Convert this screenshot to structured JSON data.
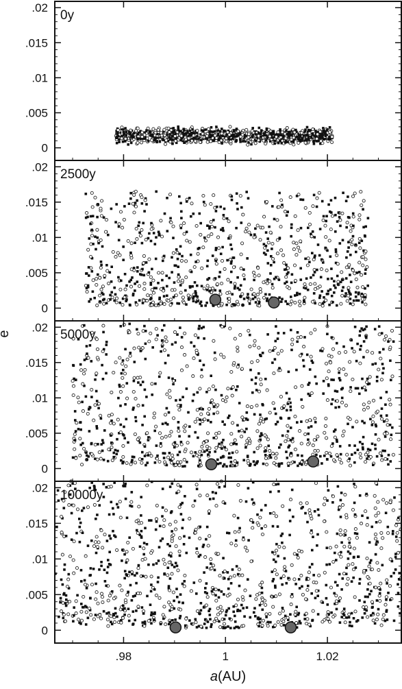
{
  "chart_data": {
    "type": "scatter",
    "x_axis": {
      "label_italic": "a",
      "label_unit": "(AU)",
      "range": [
        0.9665,
        1.0345
      ],
      "ticks": [
        0.98,
        1.0,
        1.02
      ],
      "tick_labels": [
        ".98",
        "1",
        "1.02"
      ]
    },
    "y_axis": {
      "label": "e",
      "range": [
        -0.0018,
        0.0209
      ],
      "ticks": [
        0,
        0.005,
        0.01,
        0.015,
        0.02
      ],
      "tick_labels": [
        "0",
        ".005",
        ".01",
        ".015",
        ".02"
      ]
    },
    "grid": false,
    "panels": [
      {
        "name": "0y",
        "a_range": [
          0.9785,
          1.021
        ],
        "e_range": [
          0.0002,
          0.0032
        ],
        "e_mean": 0.0013,
        "n_points": 1100,
        "big_bodies": []
      },
      {
        "name": "2500y",
        "a_range": [
          0.9725,
          1.028
        ],
        "e_range": [
          0.0003,
          0.0165
        ],
        "e_mean": 0.0045,
        "n_points": 900,
        "big_bodies": [
          {
            "a": 0.998,
            "e": 0.0012
          },
          {
            "a": 1.0095,
            "e": 0.0008
          }
        ]
      },
      {
        "name": "5000y",
        "a_range": [
          0.97,
          1.033
        ],
        "e_range": [
          0.0003,
          0.0205
        ],
        "e_mean": 0.0065,
        "n_points": 1000,
        "big_bodies": [
          {
            "a": 0.9972,
            "e": 0.0006
          },
          {
            "a": 1.0172,
            "e": 0.001
          }
        ]
      },
      {
        "name": "10000y",
        "a_range": [
          0.9665,
          1.0345
        ],
        "e_range": [
          0.0003,
          0.0209
        ],
        "e_mean": 0.0085,
        "n_points": 1100,
        "big_bodies": [
          {
            "a": 0.9902,
            "e": 0.0004
          },
          {
            "a": 1.0128,
            "e": 0.0004
          }
        ]
      }
    ]
  }
}
